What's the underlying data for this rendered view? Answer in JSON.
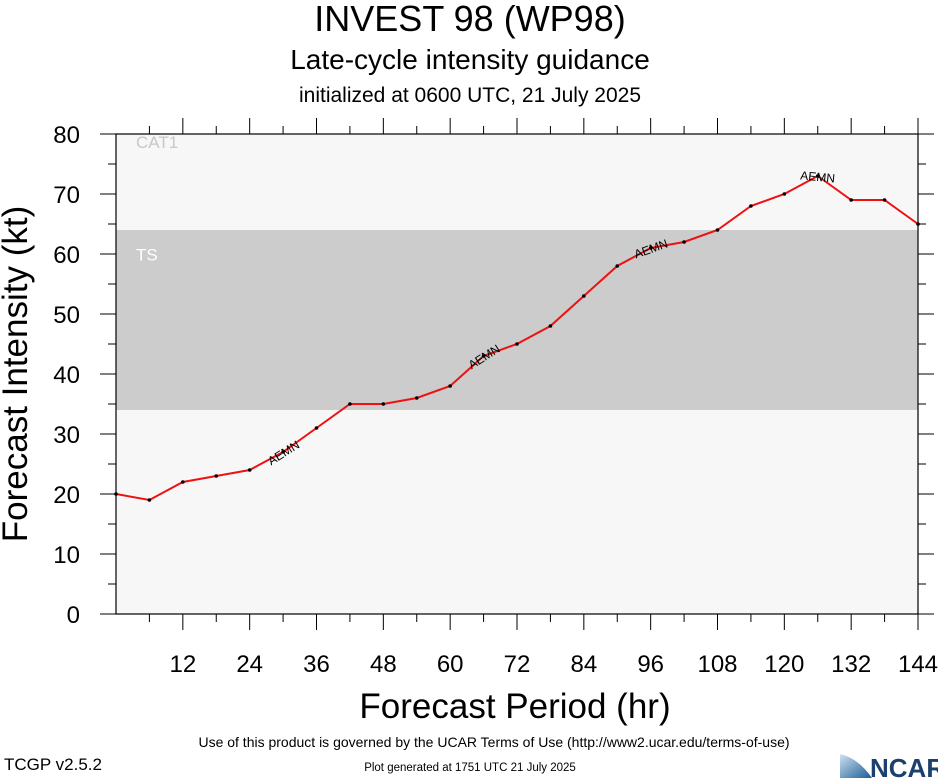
{
  "header": {
    "title": "INVEST 98 (WP98)",
    "subtitle": "Late-cycle intensity guidance",
    "initialized": "initialized at 0600 UTC, 21 July 2025"
  },
  "footer": {
    "terms": "Use of this product is governed by the UCAR Terms of Use (http://www2.ucar.edu/terms-of-use)",
    "generated": "Plot generated at 1751 UTC   21 July 2025",
    "version": "TCGP v2.5.2",
    "logo_text": "NCAR"
  },
  "chart_data": {
    "type": "line",
    "xlabel": "Forecast Period (hr)",
    "ylabel": "Forecast Intensity (kt)",
    "xlim": [
      0,
      144
    ],
    "ylim": [
      0,
      80
    ],
    "x_ticks": [
      12,
      24,
      36,
      48,
      60,
      72,
      84,
      96,
      108,
      120,
      132,
      144
    ],
    "y_ticks": [
      0,
      10,
      20,
      30,
      40,
      50,
      60,
      70,
      80
    ],
    "bands": [
      {
        "label": "TS",
        "from": 34,
        "to": 64,
        "color": "#cccccc",
        "label_color": "#ffffff"
      },
      {
        "label": "CAT1",
        "from": 64,
        "to": 80,
        "color": "#f7f7f7",
        "label_color": "#c8c8c8"
      }
    ],
    "below_band_color": "#f7f7f7",
    "series": [
      {
        "name": "AEMN",
        "color": "#ee1111",
        "label_at_x": [
          30,
          66,
          96,
          126
        ],
        "x": [
          0,
          6,
          12,
          18,
          24,
          30,
          36,
          42,
          48,
          54,
          60,
          66,
          72,
          78,
          84,
          90,
          96,
          102,
          108,
          114,
          120,
          126,
          132,
          138,
          144
        ],
        "y": [
          20,
          19,
          22,
          23,
          24,
          27,
          31,
          35,
          35,
          36,
          38,
          43,
          45,
          48,
          53,
          58,
          61,
          62,
          64,
          68,
          70,
          73,
          69,
          69,
          65
        ]
      }
    ],
    "grid": false
  }
}
